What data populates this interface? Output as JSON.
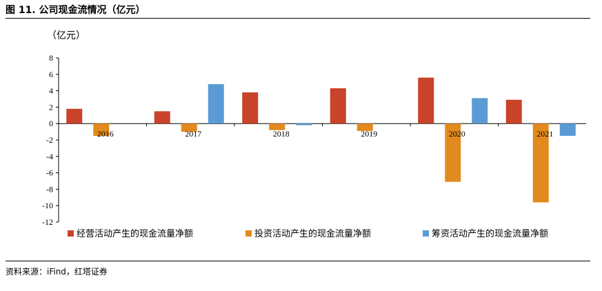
{
  "header": {
    "title": "图 11. 公司现金流情况（亿元）"
  },
  "footer": {
    "source": "资料来源：iFind，红塔证券"
  },
  "chart_data": {
    "type": "bar",
    "title": "",
    "unit_label": "（亿元）",
    "categories": [
      "2016",
      "2017",
      "2018",
      "2019",
      "2020",
      "2021"
    ],
    "ylim": [
      -12,
      8
    ],
    "yticks": [
      8,
      6,
      4,
      2,
      0,
      -2,
      -4,
      -6,
      -8,
      -10,
      -12
    ],
    "grid": false,
    "legend_position": "bottom",
    "series": [
      {
        "name": "经营活动产生的现金流量净额",
        "color": "#c8432a",
        "values": [
          1.8,
          1.5,
          3.8,
          4.3,
          5.6,
          2.9
        ]
      },
      {
        "name": "投资活动产生的现金流量净额",
        "color": "#e28a1e",
        "values": [
          -1.5,
          -1.0,
          -0.8,
          -0.9,
          -7.1,
          -9.6
        ]
      },
      {
        "name": "筹资活动产生的现金流量净额",
        "color": "#5b9bd5",
        "values": [
          0,
          4.8,
          -0.2,
          0,
          3.1,
          -1.5
        ]
      }
    ]
  }
}
